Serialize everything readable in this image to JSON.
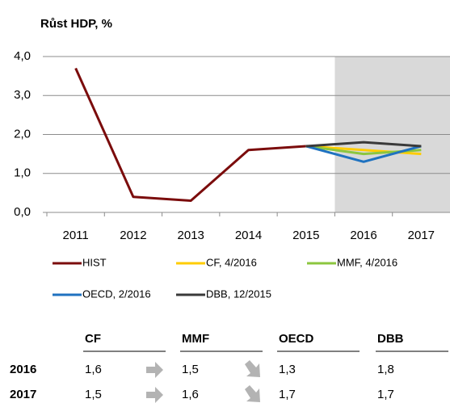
{
  "chart_data": {
    "type": "line",
    "title": "Růst HDP, %",
    "categories": [
      "2011",
      "2012",
      "2013",
      "2014",
      "2015",
      "2016",
      "2017"
    ],
    "series": [
      {
        "name": "HIST",
        "color": "#7b0c0c",
        "values": [
          3.7,
          0.4,
          0.3,
          1.6,
          1.7,
          null,
          null
        ]
      },
      {
        "name": "CF, 4/2016",
        "color": "#ffcc00",
        "values": [
          null,
          null,
          null,
          null,
          1.7,
          1.6,
          1.5
        ]
      },
      {
        "name": "MMF, 4/2016",
        "color": "#8cc63f",
        "values": [
          null,
          null,
          null,
          null,
          1.7,
          1.5,
          1.6
        ]
      },
      {
        "name": "OECD, 2/2016",
        "color": "#1f72c0",
        "values": [
          null,
          null,
          null,
          null,
          1.7,
          1.3,
          1.7
        ]
      },
      {
        "name": "DBB, 12/2015",
        "color": "#3a3a3a",
        "values": [
          null,
          null,
          null,
          null,
          1.7,
          1.8,
          1.7
        ]
      }
    ],
    "ylim": [
      0,
      4
    ],
    "yticks": [
      {
        "value": 0,
        "label": "0,0"
      },
      {
        "value": 1,
        "label": "1,0"
      },
      {
        "value": 2,
        "label": "2,0"
      },
      {
        "value": 3,
        "label": "3,0"
      },
      {
        "value": 4,
        "label": "4,0"
      }
    ],
    "grid": true
  },
  "table": {
    "header": [
      "CF",
      "MMF",
      "OECD",
      "DBB"
    ],
    "rows": [
      [
        "2016",
        "1,6",
        "1,5",
        "1,3",
        "1,8"
      ],
      [
        "2017",
        "1,5",
        "1,6",
        "1,7",
        "1,7"
      ]
    ]
  }
}
